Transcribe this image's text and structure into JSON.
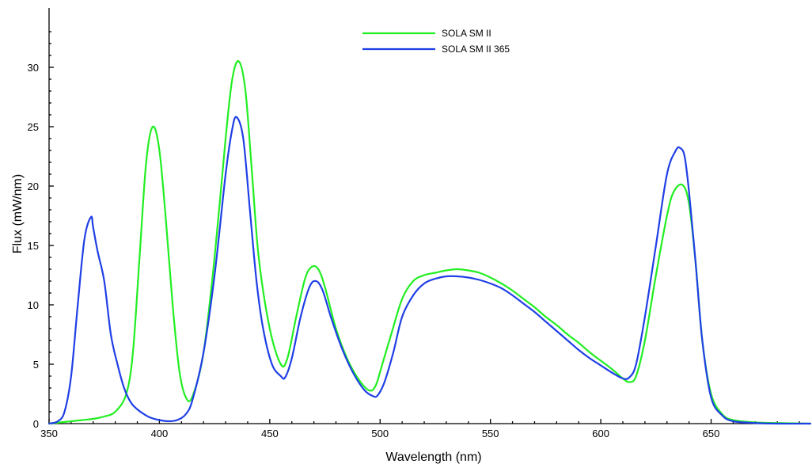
{
  "chart_data": {
    "type": "line",
    "title": "",
    "xlabel": "Wavelength (nm)",
    "ylabel": "Flux (mW/nm)",
    "xlim": [
      350,
      695
    ],
    "ylim": [
      0,
      35
    ],
    "x_ticks": [
      350,
      400,
      450,
      500,
      550,
      600,
      650
    ],
    "y_ticks": [
      0,
      5,
      10,
      15,
      20,
      25,
      30
    ],
    "grid": false,
    "legend_position": "top-center",
    "series": [
      {
        "name": "SOLA SM II",
        "color": "#22ee22",
        "x": [
          350,
          355,
          360,
          365,
          370,
          375,
          380,
          385,
          388,
          391,
          394,
          397,
          400,
          403,
          406,
          409,
          412,
          415,
          420,
          425,
          430,
          433,
          436,
          439,
          442,
          445,
          450,
          455,
          458,
          462,
          466,
          469,
          472,
          475,
          480,
          485,
          490,
          495,
          498,
          501,
          505,
          510,
          515,
          520,
          525,
          530,
          535,
          540,
          545,
          550,
          555,
          560,
          565,
          570,
          575,
          580,
          585,
          590,
          595,
          600,
          605,
          610,
          613,
          616,
          620,
          625,
          630,
          633,
          637,
          640,
          643,
          646,
          650,
          655,
          660,
          670,
          680,
          695
        ],
        "values": [
          0,
          0.1,
          0.2,
          0.3,
          0.4,
          0.6,
          1.0,
          2.5,
          6.0,
          14.0,
          22.0,
          25.0,
          23.0,
          17.0,
          10.0,
          4.5,
          2.2,
          2.3,
          6.0,
          14.0,
          24.0,
          29.0,
          30.5,
          28.0,
          21.0,
          14.0,
          8.0,
          5.0,
          5.5,
          9.0,
          12.2,
          13.2,
          13.0,
          11.5,
          8.0,
          5.5,
          3.8,
          2.8,
          3.2,
          5.0,
          7.5,
          10.5,
          12.0,
          12.5,
          12.7,
          12.9,
          13.0,
          12.9,
          12.7,
          12.3,
          11.8,
          11.2,
          10.5,
          9.8,
          9.0,
          8.3,
          7.5,
          6.8,
          6.0,
          5.3,
          4.6,
          3.8,
          3.5,
          4.0,
          7.0,
          12.5,
          17.5,
          19.5,
          20.1,
          18.5,
          13.5,
          7.0,
          2.5,
          0.8,
          0.3,
          0.1,
          0.05,
          0
        ]
      },
      {
        "name": "SOLA SM II 365",
        "color": "#1f3fe6",
        "x": [
          350,
          354,
          357,
          360,
          363,
          366,
          369,
          370,
          372,
          375,
          378,
          381,
          384,
          387,
          390,
          393,
          396,
          400,
          404,
          408,
          412,
          415,
          420,
          425,
          430,
          433,
          435,
          438,
          441,
          444,
          447,
          451,
          455,
          457,
          460,
          464,
          468,
          471,
          474,
          478,
          483,
          488,
          493,
          497,
          499,
          502,
          506,
          510,
          515,
          520,
          525,
          530,
          535,
          540,
          545,
          550,
          555,
          560,
          565,
          570,
          575,
          580,
          585,
          590,
          595,
          600,
          605,
          610,
          613,
          616,
          620,
          625,
          630,
          634,
          636,
          638,
          640,
          643,
          646,
          650,
          655,
          660,
          670,
          680,
          695
        ],
        "values": [
          0,
          0.2,
          1.0,
          4.0,
          10.0,
          15.5,
          17.4,
          16.5,
          14.5,
          12.0,
          7.5,
          5.0,
          3.0,
          1.8,
          1.2,
          0.8,
          0.5,
          0.3,
          0.2,
          0.3,
          0.8,
          2.0,
          6.0,
          12.5,
          21.0,
          24.8,
          25.8,
          24.0,
          18.0,
          12.0,
          8.0,
          5.0,
          4.0,
          3.9,
          5.5,
          9.0,
          11.5,
          12.0,
          11.2,
          8.8,
          6.2,
          4.2,
          2.8,
          2.3,
          2.4,
          3.5,
          6.0,
          9.0,
          10.8,
          11.8,
          12.2,
          12.4,
          12.4,
          12.3,
          12.1,
          11.8,
          11.4,
          10.8,
          10.1,
          9.4,
          8.6,
          7.8,
          7.0,
          6.2,
          5.5,
          4.9,
          4.3,
          3.8,
          3.9,
          5.0,
          9.0,
          15.0,
          21.0,
          23.0,
          23.2,
          22.5,
          19.5,
          13.5,
          7.0,
          2.2,
          0.7,
          0.2,
          0.05,
          0,
          0
        ]
      }
    ]
  }
}
